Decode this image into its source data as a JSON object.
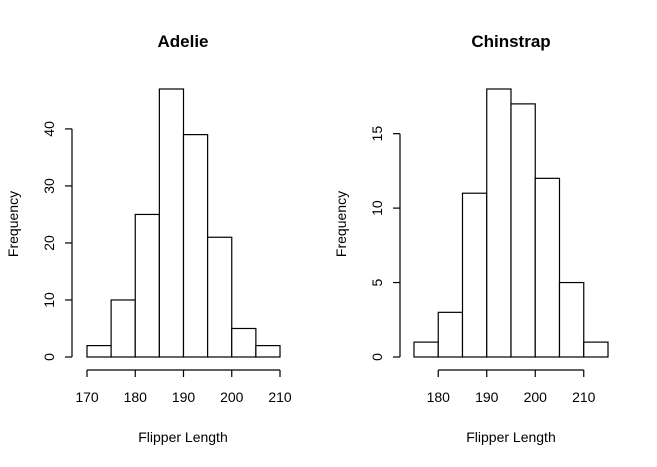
{
  "chart_data": [
    {
      "type": "bar",
      "title": "Adelie",
      "xlabel": "Flipper Length",
      "ylabel": "Frequency",
      "bin_edges": [
        170,
        175,
        180,
        185,
        190,
        195,
        200,
        205,
        210
      ],
      "values": [
        2,
        10,
        25,
        47,
        39,
        21,
        5,
        2
      ],
      "xticks": [
        170,
        180,
        190,
        200,
        210
      ],
      "yticks": [
        0,
        10,
        20,
        30,
        40
      ],
      "xlim": [
        170,
        210
      ],
      "ylim": [
        0,
        47
      ],
      "grid": false
    },
    {
      "type": "bar",
      "title": "Chinstrap",
      "xlabel": "Flipper Length",
      "ylabel": "Frequency",
      "bin_edges": [
        175,
        180,
        185,
        190,
        195,
        200,
        205,
        210,
        215
      ],
      "values": [
        1,
        3,
        11,
        18,
        17,
        12,
        5,
        1
      ],
      "xticks": [
        180,
        190,
        200,
        210
      ],
      "yticks": [
        0,
        5,
        10,
        15
      ],
      "xlim": [
        175,
        215
      ],
      "ylim": [
        0,
        18
      ],
      "grid": false
    }
  ]
}
